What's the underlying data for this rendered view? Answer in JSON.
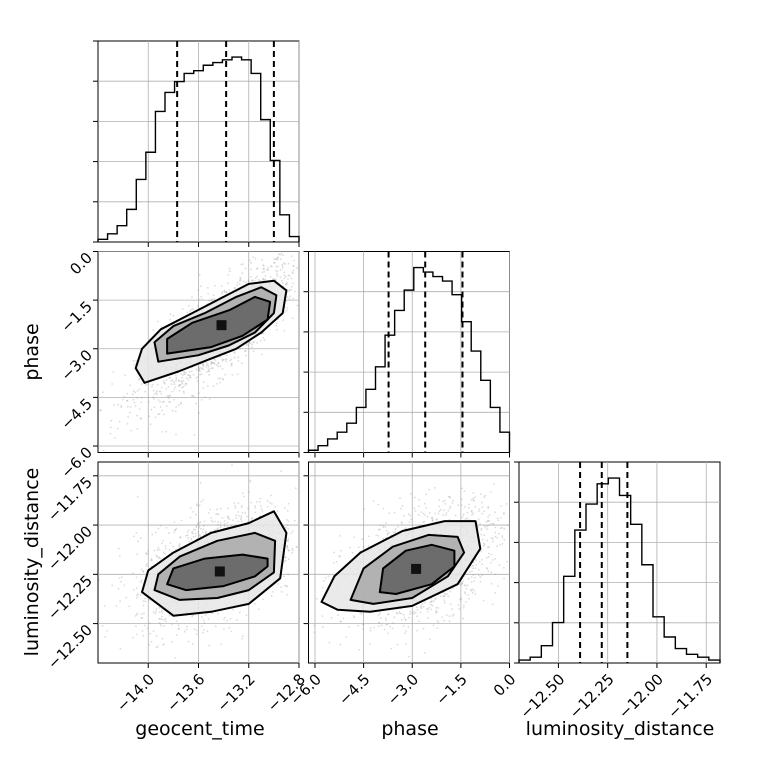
{
  "chart_data": {
    "type": "corner",
    "parameters": [
      "geocent_time",
      "phase",
      "luminosity_distance"
    ],
    "axis_labels": {
      "geocent_time": "geocent_time",
      "phase": "phase",
      "luminosity_distance": "luminosity_distance"
    },
    "ranges": {
      "geocent_time": [
        -14.4,
        -12.8
      ],
      "phase": [
        -6.2,
        0.0
      ],
      "luminosity_distance": [
        -12.7,
        -11.68
      ]
    },
    "ticks": {
      "geocent_time": [
        {
          "v": -14.0,
          "t": "−14.0"
        },
        {
          "v": -13.6,
          "t": "−13.6"
        },
        {
          "v": -13.2,
          "t": "−13.2"
        },
        {
          "v": -12.8,
          "t": "−12.8"
        }
      ],
      "phase": [
        {
          "v": -6.0,
          "t": "−6.0"
        },
        {
          "v": -4.5,
          "t": "−4.5"
        },
        {
          "v": -3.0,
          "t": "−3.0"
        },
        {
          "v": -1.5,
          "t": "−1.5"
        },
        {
          "v": 0.0,
          "t": "0.0"
        }
      ],
      "luminosity_distance": [
        {
          "v": -12.5,
          "t": "−12.50"
        },
        {
          "v": -12.25,
          "t": "−12.25"
        },
        {
          "v": -12.0,
          "t": "−12.00"
        },
        {
          "v": -11.75,
          "t": "−11.75"
        }
      ]
    },
    "histograms": {
      "geocent_time": {
        "range": [
          -14.4,
          -12.8
        ],
        "counts": [
          1,
          3,
          6,
          12,
          23,
          33,
          48,
          55,
          59,
          62,
          63,
          65,
          66,
          67,
          68,
          67,
          62,
          45,
          30,
          10,
          2
        ],
        "quantiles": [
          -13.77,
          -13.38,
          -13.0
        ]
      },
      "phase": {
        "range": [
          -6.2,
          0.0
        ],
        "counts": [
          1,
          3,
          6,
          9,
          13,
          20,
          28,
          38,
          52,
          63,
          72,
          82,
          80,
          78,
          76,
          70,
          58,
          45,
          32,
          20,
          9
        ],
        "quantiles": [
          -3.73,
          -2.6,
          -1.45
        ]
      },
      "luminosity_distance": {
        "range": [
          -12.7,
          -11.68
        ],
        "counts": [
          1,
          2,
          6,
          14,
          30,
          46,
          55,
          62,
          64,
          58,
          48,
          34,
          16,
          9,
          5,
          3,
          2,
          1
        ],
        "quantiles": [
          -12.39,
          -12.28,
          -12.15
        ]
      }
    },
    "levels": [
      [
        [
          -14.03,
          -4.05
        ],
        [
          -13.76,
          -3.7
        ],
        [
          -13.53,
          -3.35
        ],
        [
          -13.3,
          -3.0
        ],
        [
          -13.1,
          -2.5
        ],
        [
          -12.93,
          -1.9
        ],
        [
          -12.9,
          -1.2
        ],
        [
          -13.0,
          -0.9
        ],
        [
          -13.2,
          -1.0
        ],
        [
          -13.4,
          -1.4
        ],
        [
          -13.65,
          -1.9
        ],
        [
          -13.9,
          -2.4
        ],
        [
          -14.05,
          -3.0
        ],
        [
          -14.1,
          -3.6
        ]
      ],
      [
        [
          -13.92,
          -3.4
        ],
        [
          -13.6,
          -3.2
        ],
        [
          -13.36,
          -2.9
        ],
        [
          -13.15,
          -2.5
        ],
        [
          -13.0,
          -1.9
        ],
        [
          -12.98,
          -1.35
        ],
        [
          -13.1,
          -1.1
        ],
        [
          -13.3,
          -1.4
        ],
        [
          -13.55,
          -1.9
        ],
        [
          -13.8,
          -2.3
        ],
        [
          -13.95,
          -2.8
        ]
      ],
      [
        [
          -13.85,
          -3.15
        ],
        [
          -13.5,
          -2.95
        ],
        [
          -13.25,
          -2.6
        ],
        [
          -13.05,
          -2.1
        ],
        [
          -13.03,
          -1.55
        ],
        [
          -13.15,
          -1.4
        ],
        [
          -13.35,
          -1.8
        ],
        [
          -13.65,
          -2.2
        ],
        [
          -13.85,
          -2.7
        ]
      ]
    ],
    "levels_gd": [
      [
        [
          -14.05,
          -12.34
        ],
        [
          -13.8,
          -12.46
        ],
        [
          -13.5,
          -12.44
        ],
        [
          -13.2,
          -12.4
        ],
        [
          -12.95,
          -12.27
        ],
        [
          -12.9,
          -12.04
        ],
        [
          -13.0,
          -11.93
        ],
        [
          -13.2,
          -11.99
        ],
        [
          -13.5,
          -12.04
        ],
        [
          -13.8,
          -12.14
        ],
        [
          -14.0,
          -12.23
        ]
      ],
      [
        [
          -13.95,
          -12.33
        ],
        [
          -13.75,
          -12.38
        ],
        [
          -13.45,
          -12.37
        ],
        [
          -13.2,
          -12.33
        ],
        [
          -13.0,
          -12.24
        ],
        [
          -12.99,
          -12.08
        ],
        [
          -13.15,
          -12.04
        ],
        [
          -13.45,
          -12.08
        ],
        [
          -13.75,
          -12.16
        ],
        [
          -13.92,
          -12.25
        ]
      ],
      [
        [
          -13.85,
          -12.3
        ],
        [
          -13.7,
          -12.33
        ],
        [
          -13.4,
          -12.31
        ],
        [
          -13.15,
          -12.26
        ],
        [
          -13.05,
          -12.21
        ],
        [
          -13.05,
          -12.17
        ],
        [
          -13.25,
          -12.15
        ],
        [
          -13.55,
          -12.17
        ],
        [
          -13.8,
          -12.22
        ]
      ]
    ],
    "levels_pd": [
      [
        [
          -5.8,
          -12.39
        ],
        [
          -5.3,
          -12.43
        ],
        [
          -4.3,
          -12.44
        ],
        [
          -3.0,
          -12.41
        ],
        [
          -1.6,
          -12.3
        ],
        [
          -0.9,
          -12.12
        ],
        [
          -1.05,
          -11.98
        ],
        [
          -2.0,
          -11.98
        ],
        [
          -3.3,
          -12.03
        ],
        [
          -4.6,
          -12.14
        ],
        [
          -5.4,
          -12.26
        ]
      ],
      [
        [
          -4.9,
          -12.38
        ],
        [
          -4.2,
          -12.4
        ],
        [
          -3.0,
          -12.37
        ],
        [
          -1.9,
          -12.26
        ],
        [
          -1.4,
          -12.14
        ],
        [
          -1.6,
          -12.06
        ],
        [
          -2.5,
          -12.05
        ],
        [
          -3.6,
          -12.11
        ],
        [
          -4.5,
          -12.22
        ]
      ],
      [
        [
          -4.0,
          -12.34
        ],
        [
          -3.5,
          -12.35
        ],
        [
          -2.4,
          -12.3
        ],
        [
          -1.7,
          -12.21
        ],
        [
          -1.7,
          -12.13
        ],
        [
          -2.4,
          -12.1
        ],
        [
          -3.2,
          -12.13
        ],
        [
          -3.9,
          -12.22
        ]
      ]
    ]
  }
}
